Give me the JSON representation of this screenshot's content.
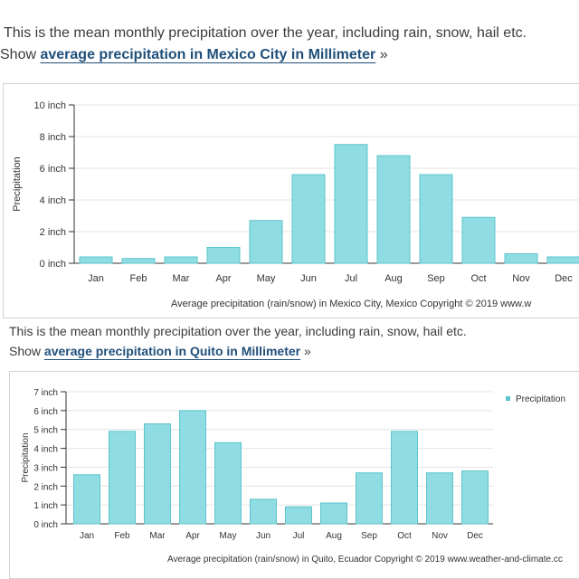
{
  "intro1": {
    "text": "This is the mean monthly precipitation over the year, including rain, snow, hail etc.",
    "show_label": "Show",
    "link_text": "average precipitation in Mexico City in Millimeter",
    "raquo": "»"
  },
  "intro2": {
    "text": "This is the mean monthly precipitation over the year, including rain, snow, hail etc.",
    "show_label": "Show",
    "link_text": "average precipitation in Quito in Millimeter",
    "raquo": "»"
  },
  "bar_color": "#8fdde2",
  "bar_stroke": "#5cc4cc",
  "chart_data": [
    {
      "type": "bar",
      "title": "",
      "ylabel": "Precipitation",
      "xlabel": "",
      "categories": [
        "Jan",
        "Feb",
        "Mar",
        "Apr",
        "May",
        "Jun",
        "Jul",
        "Aug",
        "Sep",
        "Oct",
        "Nov",
        "Dec"
      ],
      "values": [
        0.4,
        0.3,
        0.4,
        1.0,
        2.7,
        5.6,
        7.5,
        6.8,
        5.6,
        2.9,
        0.6,
        0.4
      ],
      "ylim": [
        0,
        10
      ],
      "yticks": [
        "0 inch",
        "2 inch",
        "4 inch",
        "6 inch",
        "8 inch",
        "10 inch"
      ],
      "ytick_values": [
        0,
        2,
        4,
        6,
        8,
        10
      ],
      "caption": "Average precipitation (rain/snow) in Mexico City, Mexico   Copyright © 2019 www.w",
      "legend": ""
    },
    {
      "type": "bar",
      "title": "",
      "ylabel": "Precipitation",
      "xlabel": "",
      "categories": [
        "Jan",
        "Feb",
        "Mar",
        "Apr",
        "May",
        "Jun",
        "Jul",
        "Aug",
        "Sep",
        "Oct",
        "Nov",
        "Dec"
      ],
      "values": [
        2.6,
        4.9,
        5.3,
        6.0,
        4.3,
        1.3,
        0.9,
        1.1,
        2.7,
        4.9,
        2.7,
        2.8
      ],
      "ylim": [
        0,
        7
      ],
      "yticks": [
        "0 inch",
        "1 inch",
        "2 inch",
        "3 inch",
        "4 inch",
        "5 inch",
        "6 inch",
        "7 inch"
      ],
      "ytick_values": [
        0,
        1,
        2,
        3,
        4,
        5,
        6,
        7
      ],
      "caption": "Average precipitation (rain/snow) in Quito, Ecuador   Copyright © 2019 www.weather-and-climate.cc",
      "legend": "Precipitation"
    }
  ]
}
